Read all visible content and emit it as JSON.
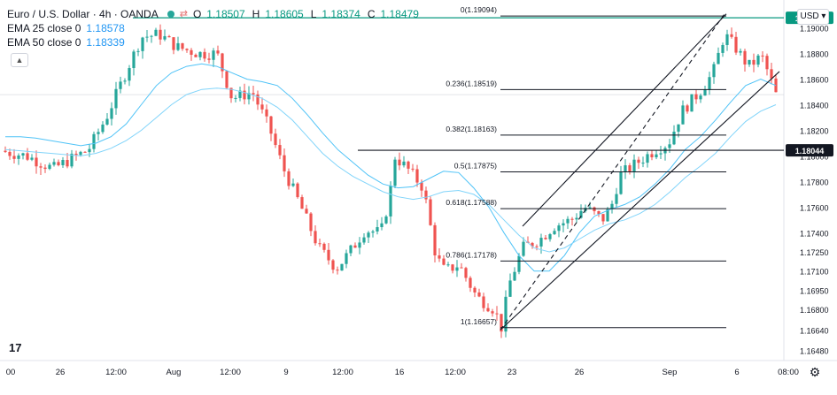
{
  "legend": {
    "symbol": "Euro / U.S. Dollar · 4h · OANDA",
    "ohlc": [
      {
        "label": "O",
        "value": "1.18507"
      },
      {
        "label": "H",
        "value": "1.18605"
      },
      {
        "label": "L",
        "value": "1.18374"
      },
      {
        "label": "C",
        "value": "1.18479"
      }
    ],
    "ema25_label": "EMA 25 close 0",
    "ema25_value": "1.18578",
    "ema50_label": "EMA 50 close 0",
    "ema50_value": "1.18339"
  },
  "currency": "USD",
  "settings_icon": "gear-icon",
  "colors": {
    "up": "#26a69a",
    "down": "#ef5350",
    "ema": "#4fc3f7",
    "resistance": "#089981",
    "line": "#131722"
  },
  "chart_data": {
    "type": "candlestick",
    "y_axis": {
      "min": 1.164,
      "max": 1.1915,
      "ticks": [
        "1.16480",
        "1.16640",
        "1.16800",
        "1.16950",
        "1.17100",
        "1.17250",
        "1.17400",
        "1.17600",
        "1.17800",
        "1.18000",
        "1.18200",
        "1.18400",
        "1.18600",
        "1.18800",
        "1.19000"
      ],
      "currency": "USD"
    },
    "x_axis": {
      "ticks": [
        "00",
        "26",
        "12:00",
        "Aug",
        "12:00",
        "9",
        "12:00",
        "16",
        "12:00",
        "23",
        "26",
        "Sep",
        "6",
        "08:00"
      ]
    },
    "horizontal_levels": [
      {
        "value": 1.1908,
        "label": "1.19080",
        "style": "resistance"
      },
      {
        "value": 1.18044,
        "label": "1.18044",
        "style": "support"
      }
    ],
    "fibonacci": [
      {
        "ratio": "0",
        "price": 1.19094,
        "label": "0(1.19094)"
      },
      {
        "ratio": "0.236",
        "price": 1.18519,
        "label": "0.236(1.18519)"
      },
      {
        "ratio": "0.382",
        "price": 1.18163,
        "label": "0.382(1.18163)"
      },
      {
        "ratio": "0.5",
        "price": 1.17875,
        "label": "0.5(1.17875)"
      },
      {
        "ratio": "0.618",
        "price": 1.17588,
        "label": "0.618(1.17588)"
      },
      {
        "ratio": "0.786",
        "price": 1.17178,
        "label": "0.786(1.17178)"
      },
      {
        "ratio": "1",
        "price": 1.16657,
        "label": "1(1.16657)"
      }
    ],
    "ema25": [
      1.1815,
      1.1815,
      1.1814,
      1.1812,
      1.181,
      1.1808,
      1.181,
      1.1815,
      1.1825,
      1.184,
      1.1855,
      1.1865,
      1.187,
      1.1872,
      1.187,
      1.1865,
      1.186,
      1.1858,
      1.1855,
      1.1845,
      1.1832,
      1.1818,
      1.1805,
      1.1795,
      1.1785,
      1.1778,
      1.1775,
      1.1776,
      1.1782,
      1.1788,
      1.1787,
      1.1775,
      1.176,
      1.174,
      1.1722,
      1.171,
      1.171,
      1.1722,
      1.174,
      1.1753,
      1.1758,
      1.1762,
      1.1768,
      1.1778,
      1.179,
      1.1805,
      1.1815,
      1.1828,
      1.1842,
      1.1855,
      1.186,
      1.1855
    ],
    "ema50": [
      1.1805,
      1.1804,
      1.1803,
      1.1802,
      1.1801,
      1.18,
      1.1802,
      1.1806,
      1.1812,
      1.182,
      1.183,
      1.184,
      1.1848,
      1.1852,
      1.1853,
      1.1852,
      1.1849,
      1.1845,
      1.1838,
      1.1828,
      1.1815,
      1.1802,
      1.1792,
      1.1784,
      1.1778,
      1.1772,
      1.1768,
      1.1766,
      1.1768,
      1.1772,
      1.1773,
      1.177,
      1.1762,
      1.175,
      1.1738,
      1.1728,
      1.1725,
      1.1728,
      1.1735,
      1.1742,
      1.1747,
      1.175,
      1.1755,
      1.1762,
      1.1772,
      1.1783,
      1.1792,
      1.1802,
      1.1815,
      1.1827,
      1.1835,
      1.184
    ]
  }
}
